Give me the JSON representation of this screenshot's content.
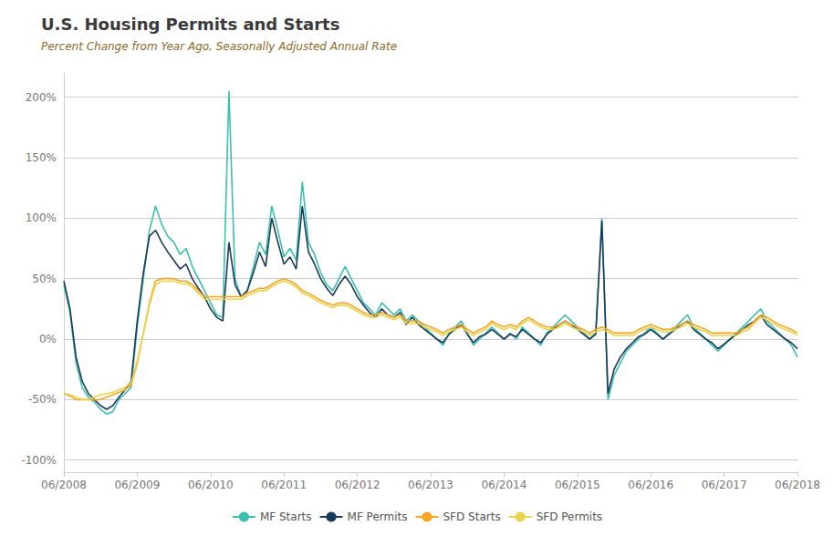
{
  "chart_data": {
    "type": "line",
    "title": "U.S. Housing Permits and Starts",
    "subtitle": "Percent Change from Year Ago, Seasonally Adjusted Annual Rate",
    "title_color": "#3a3a3a",
    "subtitle_color": "#8a6a2a",
    "categories": [
      "06/2008",
      null,
      null,
      null,
      null,
      null,
      null,
      null,
      null,
      null,
      null,
      null,
      "06/2009",
      null,
      null,
      null,
      null,
      null,
      null,
      null,
      null,
      null,
      null,
      null,
      "06/2010",
      null,
      null,
      null,
      null,
      null,
      null,
      null,
      null,
      null,
      null,
      null,
      "06/2011",
      null,
      null,
      null,
      null,
      null,
      null,
      null,
      null,
      null,
      null,
      null,
      "06/2012",
      null,
      null,
      null,
      null,
      null,
      null,
      null,
      null,
      null,
      null,
      null,
      "06/2013",
      null,
      null,
      null,
      null,
      null,
      null,
      null,
      null,
      null,
      null,
      null,
      "06/2014",
      null,
      null,
      null,
      null,
      null,
      null,
      null,
      null,
      null,
      null,
      null,
      "06/2015",
      null,
      null,
      null,
      null,
      null,
      null,
      null,
      null,
      null,
      null,
      null,
      "06/2016",
      null,
      null,
      null,
      null,
      null,
      null,
      null,
      null,
      null,
      null,
      null,
      "06/2017",
      null,
      null,
      null,
      null,
      null,
      null,
      null,
      null,
      null,
      null,
      null,
      "06/2018"
    ],
    "series": [
      {
        "name": "MF Starts",
        "color": "#3dbfb0",
        "values": [
          45,
          22,
          -20,
          -40,
          -48,
          -52,
          -58,
          -62,
          -60,
          -50,
          -45,
          -40,
          10,
          50,
          90,
          110,
          95,
          85,
          80,
          70,
          75,
          60,
          50,
          40,
          30,
          20,
          18,
          205,
          50,
          35,
          40,
          60,
          80,
          70,
          110,
          90,
          68,
          75,
          65,
          130,
          80,
          70,
          55,
          45,
          40,
          50,
          60,
          50,
          40,
          30,
          25,
          20,
          30,
          25,
          20,
          25,
          15,
          20,
          15,
          10,
          5,
          0,
          -5,
          5,
          10,
          15,
          5,
          -5,
          0,
          5,
          10,
          5,
          0,
          5,
          0,
          10,
          5,
          0,
          -5,
          5,
          10,
          15,
          20,
          15,
          10,
          5,
          0,
          5,
          100,
          -50,
          -30,
          -20,
          -10,
          -5,
          0,
          5,
          10,
          5,
          0,
          5,
          10,
          15,
          20,
          10,
          5,
          0,
          -5,
          -10,
          -5,
          0,
          5,
          10,
          15,
          20,
          25,
          15,
          10,
          5,
          0,
          -5,
          -15
        ]
      },
      {
        "name": "MF Permits",
        "color": "#1a3a5c",
        "values": [
          48,
          25,
          -15,
          -35,
          -45,
          -50,
          -55,
          -58,
          -55,
          -48,
          -42,
          -35,
          15,
          55,
          85,
          90,
          80,
          72,
          65,
          58,
          62,
          50,
          42,
          35,
          25,
          18,
          15,
          80,
          45,
          35,
          40,
          55,
          72,
          60,
          100,
          80,
          62,
          68,
          58,
          110,
          72,
          62,
          50,
          42,
          36,
          45,
          52,
          45,
          35,
          28,
          22,
          18,
          25,
          20,
          18,
          22,
          12,
          18,
          12,
          8,
          4,
          0,
          -3,
          4,
          8,
          12,
          4,
          -3,
          2,
          4,
          8,
          4,
          0,
          4,
          2,
          8,
          4,
          0,
          -3,
          4,
          8,
          12,
          15,
          12,
          8,
          4,
          0,
          4,
          98,
          -45,
          -25,
          -15,
          -8,
          -3,
          2,
          4,
          8,
          4,
          0,
          4,
          8,
          12,
          15,
          8,
          4,
          0,
          -3,
          -8,
          -4,
          0,
          4,
          8,
          12,
          15,
          20,
          12,
          8,
          4,
          0,
          -3,
          -8
        ]
      },
      {
        "name": "SFD Starts",
        "color": "#f5a623",
        "values": [
          -45,
          -47,
          -50,
          -50,
          -50,
          -50,
          -50,
          -48,
          -46,
          -44,
          -42,
          -38,
          -20,
          5,
          30,
          48,
          50,
          50,
          50,
          48,
          48,
          45,
          40,
          35,
          35,
          35,
          35,
          35,
          35,
          35,
          38,
          40,
          42,
          42,
          45,
          48,
          50,
          48,
          45,
          40,
          38,
          35,
          32,
          30,
          28,
          30,
          30,
          28,
          25,
          22,
          20,
          20,
          22,
          20,
          18,
          20,
          15,
          15,
          15,
          12,
          10,
          8,
          5,
          8,
          10,
          12,
          8,
          5,
          8,
          10,
          15,
          12,
          10,
          12,
          10,
          15,
          18,
          15,
          12,
          10,
          10,
          12,
          15,
          12,
          10,
          8,
          5,
          8,
          10,
          8,
          5,
          5,
          5,
          5,
          8,
          10,
          12,
          10,
          8,
          8,
          10,
          12,
          15,
          12,
          10,
          8,
          5,
          5,
          5,
          5,
          5,
          8,
          10,
          15,
          20,
          18,
          15,
          12,
          10,
          8,
          5
        ]
      },
      {
        "name": "SFD Permits",
        "color": "#e8d44d",
        "values": [
          -45,
          -46,
          -48,
          -50,
          -50,
          -48,
          -46,
          -45,
          -44,
          -42,
          -40,
          -36,
          -18,
          5,
          28,
          45,
          48,
          48,
          48,
          46,
          46,
          43,
          38,
          33,
          33,
          33,
          33,
          33,
          33,
          33,
          36,
          38,
          40,
          40,
          43,
          46,
          48,
          46,
          43,
          38,
          36,
          33,
          30,
          28,
          26,
          28,
          28,
          26,
          23,
          20,
          18,
          18,
          20,
          18,
          16,
          18,
          13,
          13,
          13,
          10,
          8,
          6,
          3,
          6,
          8,
          10,
          6,
          3,
          6,
          8,
          13,
          10,
          8,
          10,
          8,
          13,
          16,
          13,
          10,
          8,
          8,
          10,
          13,
          10,
          8,
          6,
          3,
          6,
          8,
          6,
          3,
          3,
          3,
          3,
          6,
          8,
          10,
          8,
          6,
          6,
          8,
          10,
          13,
          10,
          8,
          6,
          3,
          3,
          3,
          3,
          3,
          6,
          8,
          13,
          18,
          16,
          13,
          10,
          8,
          6,
          3
        ]
      }
    ],
    "ylim": [
      -110,
      220
    ],
    "yticks": [
      {
        "value": -100,
        "label": "-100%"
      },
      {
        "value": -50,
        "label": "-50%"
      },
      {
        "value": 0,
        "label": "0%"
      },
      {
        "value": 50,
        "label": "50%"
      },
      {
        "value": 100,
        "label": "100%"
      },
      {
        "value": 150,
        "label": "150%"
      },
      {
        "value": 200,
        "label": "200%"
      }
    ],
    "grid": true,
    "legend": "bottom"
  }
}
